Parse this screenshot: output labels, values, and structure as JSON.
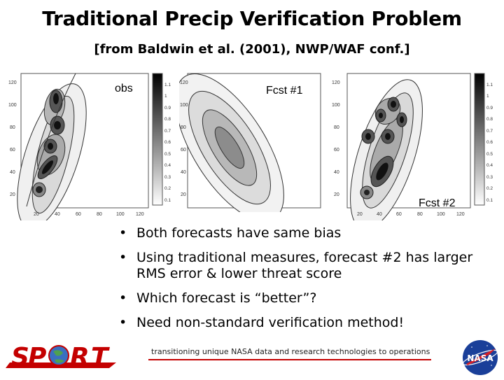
{
  "slide": {
    "title": "Traditional Precip Verification Problem",
    "subtitle": "[from Baldwin et al. (2001), NWP/WAF conf.]"
  },
  "panels": [
    {
      "label": "obs",
      "y_ticks": [
        "120",
        "100",
        "80",
        "60",
        "40",
        "20"
      ],
      "x_ticks": [
        "20",
        "40",
        "60",
        "80",
        "100",
        "120"
      ]
    },
    {
      "label": "Fcst #1",
      "y_ticks": [
        "120",
        "100",
        "80",
        "60",
        "40",
        "20"
      ],
      "x_ticks": []
    },
    {
      "label": "Fcst #2",
      "y_ticks": [
        "120",
        "100",
        "80",
        "60",
        "40",
        "20"
      ],
      "x_ticks": [
        "20",
        "40",
        "60",
        "80",
        "100",
        "120"
      ]
    }
  ],
  "colorbars": [
    {
      "ticks": [
        "1.1",
        "1",
        "0.9",
        "0.8",
        "0.7",
        "0.6",
        "0.5",
        "0.4",
        "0.3",
        "0.2",
        "0.1"
      ]
    },
    {
      "ticks": [
        "1.1",
        "1",
        "0.9",
        "0.8",
        "0.7",
        "0.6",
        "0.5",
        "0.4",
        "0.3",
        "0.2",
        "0.1"
      ]
    }
  ],
  "bullets": [
    "Both forecasts have same bias",
    "Using traditional measures, forecast #2 has larger RMS error & lower threat score",
    "Which forecast is “better”?",
    "Need non-standard verification method!"
  ],
  "footer": {
    "tagline": "transitioning unique NASA data and research technologies to operations"
  },
  "logos": {
    "left": "SPoRT",
    "right": "NASA"
  },
  "colors": {
    "accent_red": "#c40000",
    "nasa_blue": "#1a3f99"
  }
}
